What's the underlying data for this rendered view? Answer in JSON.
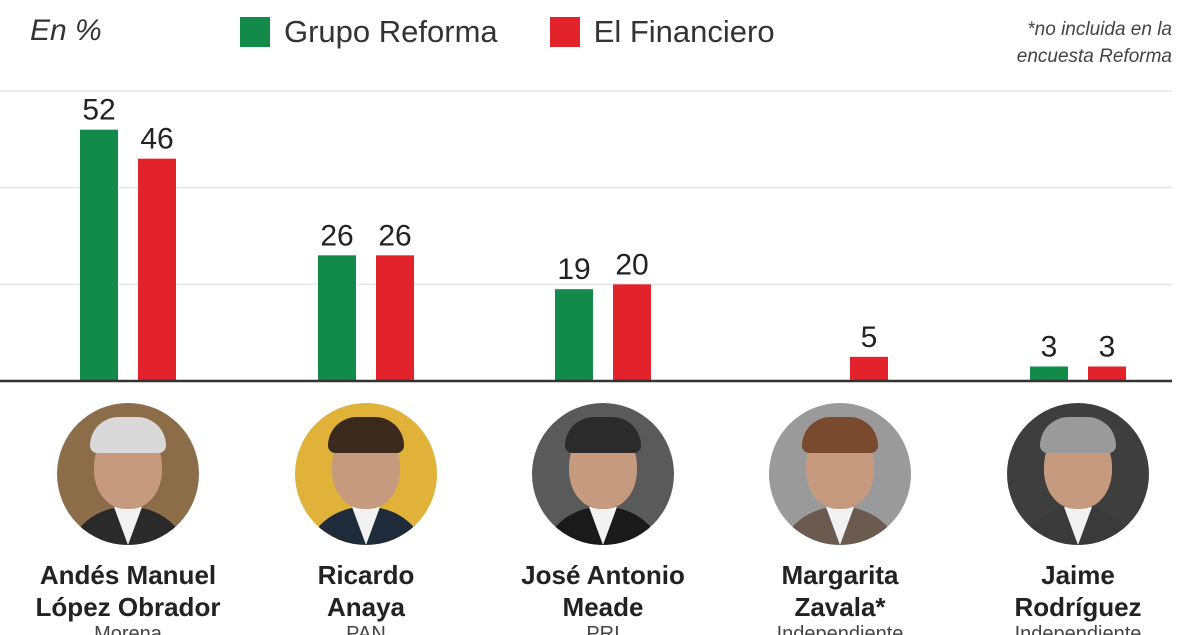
{
  "unit_label": "En %",
  "footnote": [
    "*no incluida en la",
    "encuesta Reforma"
  ],
  "colors": {
    "reforma": "#128a4a",
    "financiero": "#e3232c",
    "gridline": "#e6e6e6",
    "axis": "#333333"
  },
  "chart_data": {
    "type": "bar",
    "categories": [
      "Andés Manuel López Obrador",
      "Ricardo Anaya",
      "José Antonio Meade",
      "Margarita Zavala*",
      "Jaime Rodríguez"
    ],
    "series": [
      {
        "name": "Grupo Reforma",
        "color": "#128a4a",
        "values": [
          52,
          26,
          19,
          null,
          3
        ]
      },
      {
        "name": "El Financiero",
        "color": "#e3232c",
        "values": [
          46,
          26,
          20,
          5,
          3
        ]
      }
    ],
    "ylim": [
      0,
      60
    ],
    "yticks": [
      0,
      20,
      40,
      60
    ],
    "grid": true,
    "legend_position": "top"
  },
  "candidates": [
    {
      "name_lines": [
        "Andés Manuel",
        "López Obrador"
      ],
      "party": "Morena",
      "avatar_icon": "portrait-amlo",
      "hair": "#d9d9d9",
      "suit": "#2a2a2a",
      "bg": "#8c6d4a"
    },
    {
      "name_lines": [
        "Ricardo",
        "Anaya"
      ],
      "party": "PAN",
      "avatar_icon": "portrait-anaya",
      "hair": "#3a2a1e",
      "suit": "#1f2a3a",
      "bg": "#e0b23a"
    },
    {
      "name_lines": [
        "José Antonio",
        "Meade"
      ],
      "party": "PRI",
      "avatar_icon": "portrait-meade",
      "hair": "#2b2b2b",
      "suit": "#1a1a1a",
      "bg": "#5a5a5a"
    },
    {
      "name_lines": [
        "Margarita",
        "Zavala*"
      ],
      "party": "Independiente",
      "avatar_icon": "portrait-zavala",
      "hair": "#7a4a2e",
      "suit": "#6a5a50",
      "bg": "#9a9a9a"
    },
    {
      "name_lines": [
        "Jaime",
        "Rodríguez"
      ],
      "party": "Independiente",
      "avatar_icon": "portrait-rodriguez",
      "hair": "#9a9a9a",
      "suit": "#3a3a3a",
      "bg": "#3e3e3e"
    }
  ]
}
